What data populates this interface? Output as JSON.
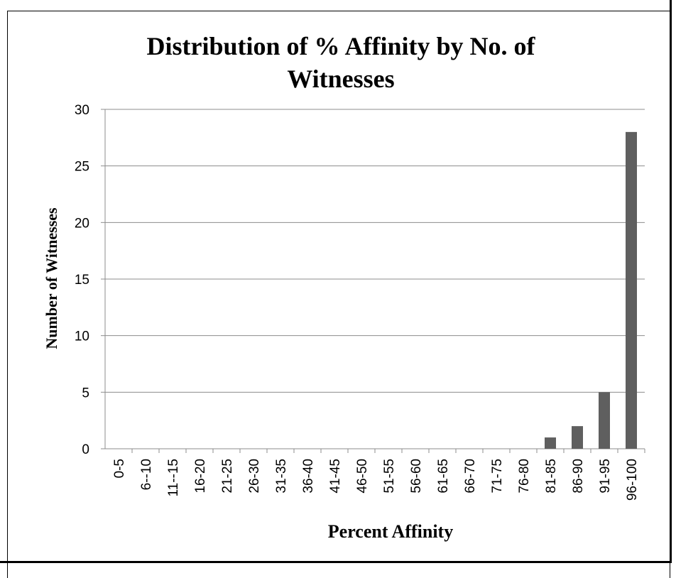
{
  "chart_data": {
    "type": "bar",
    "title": "Distribution of % Affinity by No. of Witnesses",
    "xlabel": "Percent Affinity",
    "ylabel": "Number of Witnesses",
    "categories": [
      "0-5",
      "6--10",
      "11--15",
      "16-20",
      "21-25",
      "26-30",
      "31-35",
      "36-40",
      "41-45",
      "46-50",
      "51-55",
      "56-60",
      "61-65",
      "66-70",
      "71-75",
      "76-80",
      "81-85",
      "86-90",
      "91-95",
      "96-100"
    ],
    "values": [
      0,
      0,
      0,
      0,
      0,
      0,
      0,
      0,
      0,
      0,
      0,
      0,
      0,
      0,
      0,
      0,
      1,
      2,
      5,
      28
    ],
    "ylim": [
      0,
      30
    ],
    "yticks": [
      0,
      5,
      10,
      15,
      20,
      25,
      30
    ],
    "grid": true,
    "legend": "none",
    "bar_color": "#5f5f5f",
    "grid_color": "#8c8c8c"
  }
}
